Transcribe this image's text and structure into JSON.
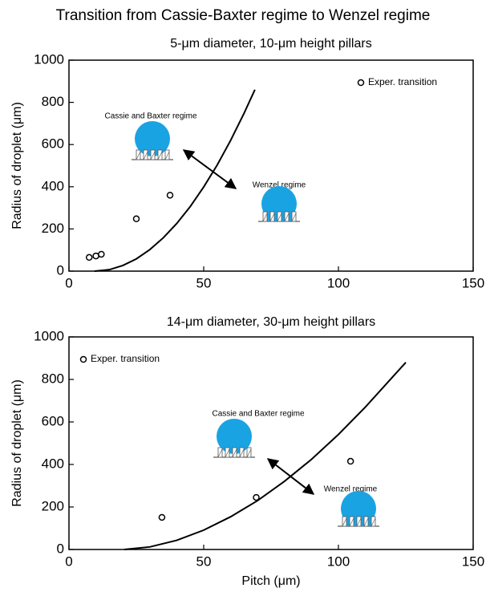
{
  "title": "Transition from Cassie-Baxter regime to Wenzel regime",
  "chart_data": [
    {
      "type": "line",
      "title": "5-μm diameter, 10-μm height pillars",
      "ylabel": "Radius of droplet (μm)",
      "xlim": [
        0,
        150
      ],
      "xticks": [
        0,
        50,
        100,
        150
      ],
      "ylim": [
        0,
        1000
      ],
      "yticks": [
        0,
        200,
        400,
        600,
        800,
        1000
      ],
      "legend": "upper right",
      "annotations": [
        "Cassie and Baxter regime",
        "Wenzel regime"
      ],
      "series": [
        {
          "name": "Exper. transition",
          "mode": "markers",
          "color": "#000000",
          "x": [
            7.5,
            10,
            12,
            25,
            37.5
          ],
          "values": [
            65,
            72,
            80,
            248,
            360
          ]
        },
        {
          "mode": "line",
          "color": "#000000",
          "x": [
            9.5,
            15,
            20,
            25,
            30,
            35,
            40,
            45,
            50,
            55,
            60,
            65,
            69
          ],
          "values": [
            0,
            7,
            27,
            58,
            102,
            158,
            226,
            306,
            399,
            503,
            620,
            749,
            860
          ]
        }
      ]
    },
    {
      "type": "line",
      "title": "14-μm diameter, 30-μm height pillars",
      "xlabel": "Pitch (μm)",
      "ylabel": "Radius of droplet (μm)",
      "xlim": [
        0,
        150
      ],
      "xticks": [
        0,
        50,
        100,
        150
      ],
      "ylim": [
        0,
        1000
      ],
      "yticks": [
        0,
        200,
        400,
        600,
        800,
        1000
      ],
      "legend": "upper left",
      "annotations": [
        "Cassie and Baxter regime",
        "Wenzel regime"
      ],
      "series": [
        {
          "name": "Exper. transition",
          "mode": "markers",
          "color": "#000000",
          "x": [
            34.5,
            69.5,
            104.5
          ],
          "values": [
            151,
            245,
            415
          ]
        },
        {
          "mode": "line",
          "color": "#000000",
          "x": [
            20.5,
            30,
            40,
            50,
            60,
            70,
            80,
            90,
            100,
            110,
            120,
            125
          ],
          "values": [
            0,
            12,
            43,
            91,
            154,
            230,
            321,
            424,
            541,
            670,
            810,
            880
          ]
        }
      ]
    }
  ]
}
